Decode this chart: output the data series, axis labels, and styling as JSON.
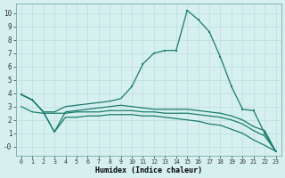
{
  "xlabel": "Humidex (Indice chaleur)",
  "bg_color": "#d6f0f0",
  "grid_color": "#c0e0e0",
  "line_color": "#1a7a6e",
  "xlim": [
    -0.5,
    23.5
  ],
  "ylim": [
    -0.7,
    10.7
  ],
  "xticks": [
    0,
    1,
    2,
    3,
    4,
    5,
    6,
    7,
    8,
    9,
    10,
    11,
    12,
    13,
    14,
    15,
    16,
    17,
    18,
    19,
    20,
    21,
    22,
    23
  ],
  "yticks": [
    0,
    1,
    2,
    3,
    4,
    5,
    6,
    7,
    8,
    9,
    10
  ],
  "ytick_labels": [
    "-0",
    "1",
    "2",
    "3",
    "4",
    "5",
    "6",
    "7",
    "8",
    "9",
    "10"
  ],
  "curve1_x": [
    0,
    1,
    2,
    3,
    4,
    5,
    6,
    7,
    8,
    9,
    10,
    11,
    12,
    13,
    14,
    15,
    16,
    17,
    18,
    19,
    20,
    21,
    22,
    23
  ],
  "curve1_y": [
    3.9,
    3.5,
    2.6,
    2.6,
    3.0,
    3.1,
    3.2,
    3.3,
    3.4,
    3.6,
    4.5,
    6.2,
    7.0,
    7.2,
    7.2,
    10.2,
    9.5,
    8.6,
    6.7,
    4.5,
    2.8,
    2.7,
    1.0,
    -0.35
  ],
  "curve1_markers_x": [
    0,
    1,
    10,
    11,
    12,
    13,
    14,
    15,
    16,
    17,
    18,
    19,
    20,
    21,
    22,
    23
  ],
  "curve1_markers_y": [
    3.9,
    3.5,
    4.5,
    6.2,
    7.0,
    7.2,
    7.2,
    10.2,
    9.5,
    8.6,
    6.7,
    4.5,
    2.8,
    2.7,
    1.0,
    -0.35
  ],
  "curve2_x": [
    0,
    1,
    2,
    3,
    4,
    5,
    6,
    7,
    8,
    9,
    10,
    11,
    12,
    13,
    14,
    15,
    16,
    17,
    18,
    19,
    20,
    21,
    22,
    23
  ],
  "curve2_y": [
    3.9,
    3.5,
    2.6,
    1.1,
    2.6,
    2.7,
    2.8,
    2.9,
    3.0,
    3.1,
    3.0,
    2.9,
    2.8,
    2.8,
    2.8,
    2.8,
    2.7,
    2.6,
    2.5,
    2.3,
    2.0,
    1.5,
    1.2,
    -0.35
  ],
  "curve3_x": [
    0,
    1,
    2,
    3,
    4,
    5,
    6,
    7,
    8,
    9,
    10,
    11,
    12,
    13,
    14,
    15,
    16,
    17,
    18,
    19,
    20,
    21,
    22,
    23
  ],
  "curve3_y": [
    3.9,
    3.5,
    2.6,
    1.1,
    2.2,
    2.2,
    2.3,
    2.3,
    2.4,
    2.4,
    2.4,
    2.3,
    2.3,
    2.2,
    2.1,
    2.0,
    1.9,
    1.7,
    1.6,
    1.3,
    1.0,
    0.5,
    0.1,
    -0.35
  ],
  "curve4_x": [
    0,
    1,
    2,
    3,
    4,
    5,
    6,
    7,
    8,
    9,
    10,
    11,
    12,
    13,
    14,
    15,
    16,
    17,
    18,
    19,
    20,
    21,
    22,
    23
  ],
  "curve4_y": [
    3.0,
    2.6,
    2.5,
    2.5,
    2.5,
    2.6,
    2.6,
    2.6,
    2.7,
    2.7,
    2.7,
    2.6,
    2.6,
    2.5,
    2.5,
    2.5,
    2.4,
    2.3,
    2.2,
    2.0,
    1.7,
    1.2,
    0.8,
    -0.35
  ]
}
